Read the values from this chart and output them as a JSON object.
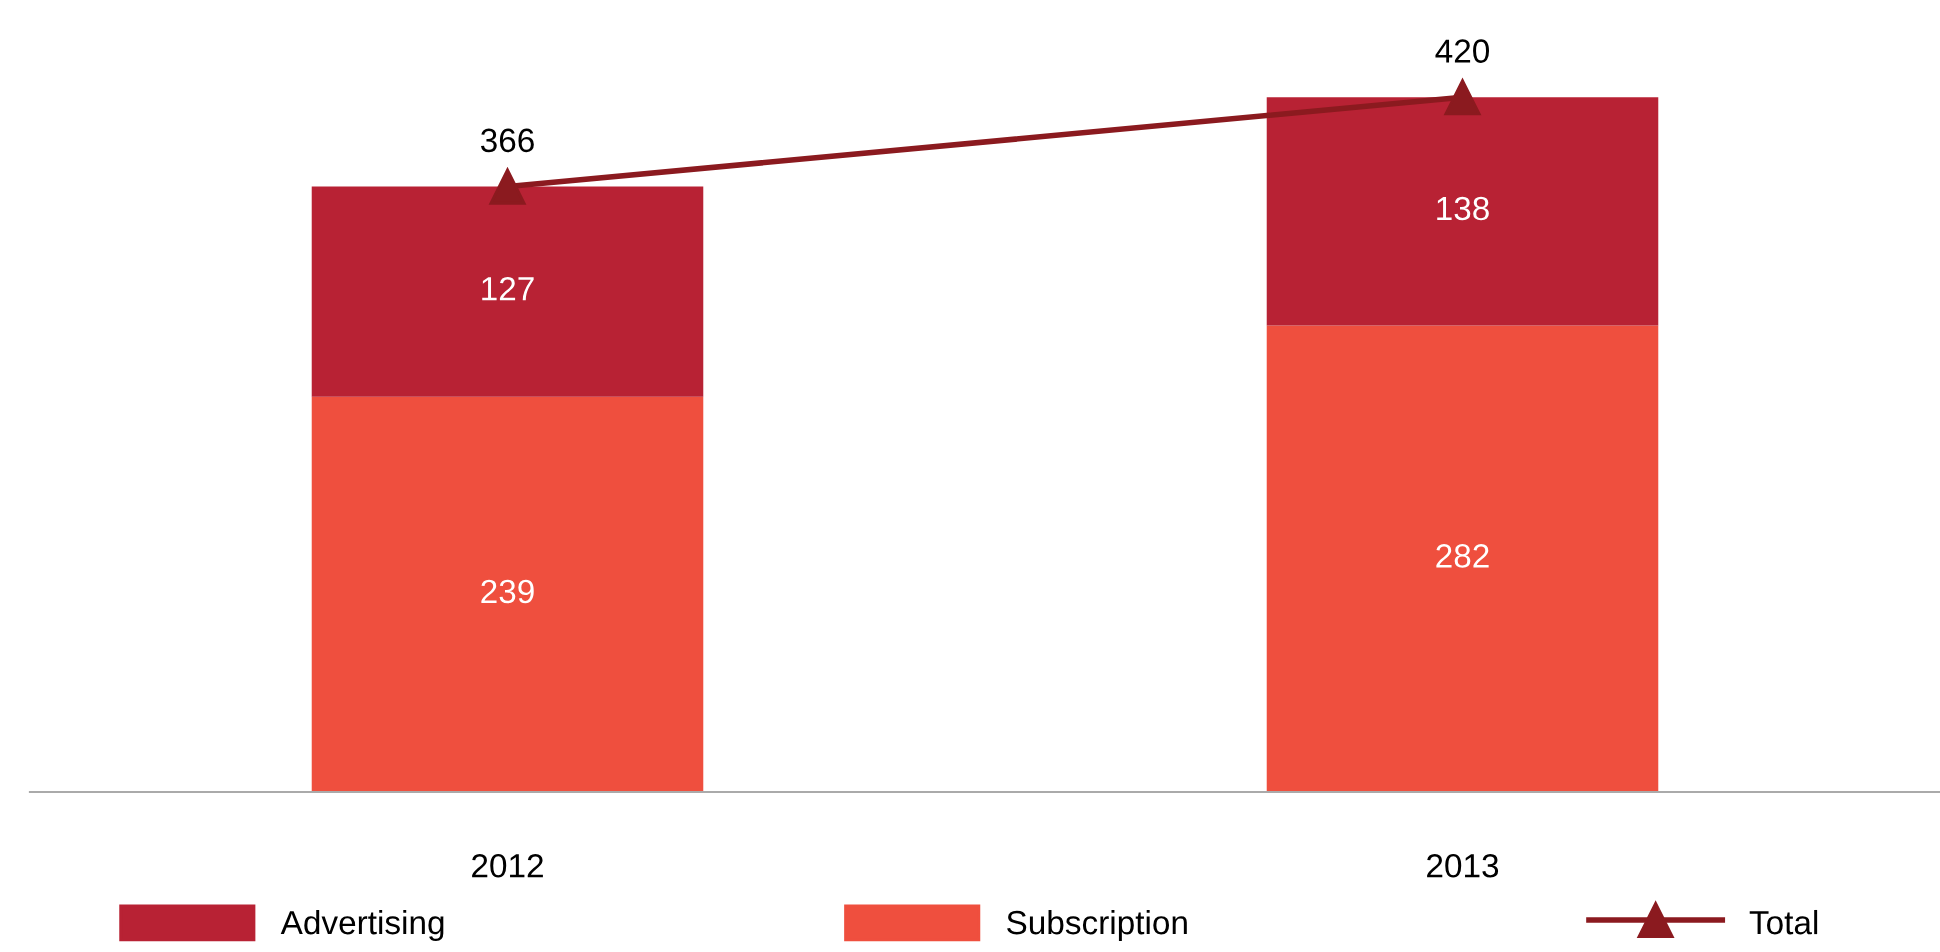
{
  "chart_data": {
    "type": "bar",
    "stacked": true,
    "data_labels": true,
    "legend": "bottom",
    "tick_labels": "x",
    "categories": [
      "2012",
      "2013"
    ],
    "series": [
      {
        "name": "Subscription",
        "color": "#ef4f3e",
        "values": [
          239,
          282
        ]
      },
      {
        "name": "Advertising",
        "color": "#b82234",
        "values": [
          127,
          138
        ]
      },
      {
        "name": "Total",
        "type": "line",
        "color": "#8b1a1f",
        "marker": "triangle",
        "values": [
          366,
          420
        ]
      }
    ]
  }
}
